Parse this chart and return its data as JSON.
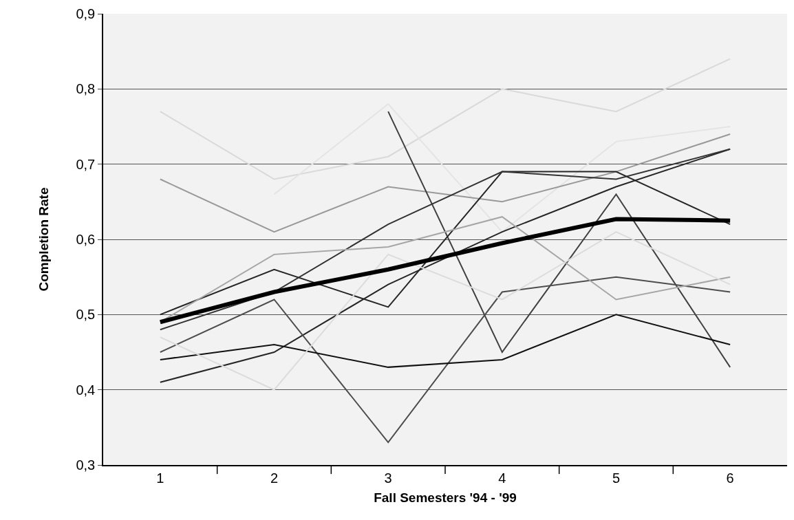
{
  "chart_data": {
    "type": "line",
    "xlabel": "Fall Semesters '94 - '99",
    "ylabel": "Completion Rate",
    "categories": [
      "1",
      "2",
      "3",
      "4",
      "5",
      "6"
    ],
    "ylim": [
      0.3,
      0.9
    ],
    "yticks": [
      {
        "value": 0.3,
        "label": "0,3"
      },
      {
        "value": 0.4,
        "label": "0,4"
      },
      {
        "value": 0.5,
        "label": "0,5"
      },
      {
        "value": 0.6,
        "label": "0,6"
      },
      {
        "value": 0.7,
        "label": "0,7"
      },
      {
        "value": 0.8,
        "label": "0,8"
      },
      {
        "value": 0.9,
        "label": "0,9"
      }
    ],
    "grid": "y",
    "marker": "none",
    "line_style": "solid",
    "series": [
      {
        "color": "#d9d9d9",
        "values": [
          0.77,
          0.68,
          0.71,
          0.8,
          0.77,
          0.84
        ]
      },
      {
        "color": "#e4e4e4",
        "values": [
          null,
          0.66,
          0.78,
          0.61,
          0.73,
          0.75
        ]
      },
      {
        "color": "#999999",
        "values": [
          0.68,
          0.61,
          0.67,
          0.65,
          0.69,
          0.74
        ]
      },
      {
        "color": "#404040",
        "values": [
          null,
          null,
          0.77,
          0.45,
          0.66,
          0.43
        ]
      },
      {
        "color": "#262626",
        "values": [
          0.5,
          0.56,
          0.51,
          0.69,
          0.69,
          0.62
        ]
      },
      {
        "color": "#262626",
        "values": [
          0.41,
          0.45,
          0.54,
          0.61,
          0.67,
          0.72
        ]
      },
      {
        "color": "#4d4d4d",
        "values": [
          0.45,
          0.52,
          0.33,
          0.53,
          0.55,
          0.53
        ]
      },
      {
        "color": "#111111",
        "values": [
          0.44,
          0.46,
          0.43,
          0.44,
          0.5,
          0.46
        ]
      },
      {
        "color": "#333333",
        "values": [
          0.48,
          0.53,
          0.62,
          0.69,
          0.68,
          0.72
        ]
      },
      {
        "color": "#a6a6a6",
        "values": [
          0.49,
          0.58,
          0.59,
          0.63,
          0.52,
          0.55
        ]
      },
      {
        "color": "#dcdcdc",
        "values": [
          0.47,
          0.4,
          0.58,
          0.52,
          0.61,
          0.54
        ]
      },
      {
        "color": "#000000",
        "values": [
          0.49,
          0.53,
          0.56,
          0.595,
          0.627,
          0.625
        ]
      }
    ]
  }
}
